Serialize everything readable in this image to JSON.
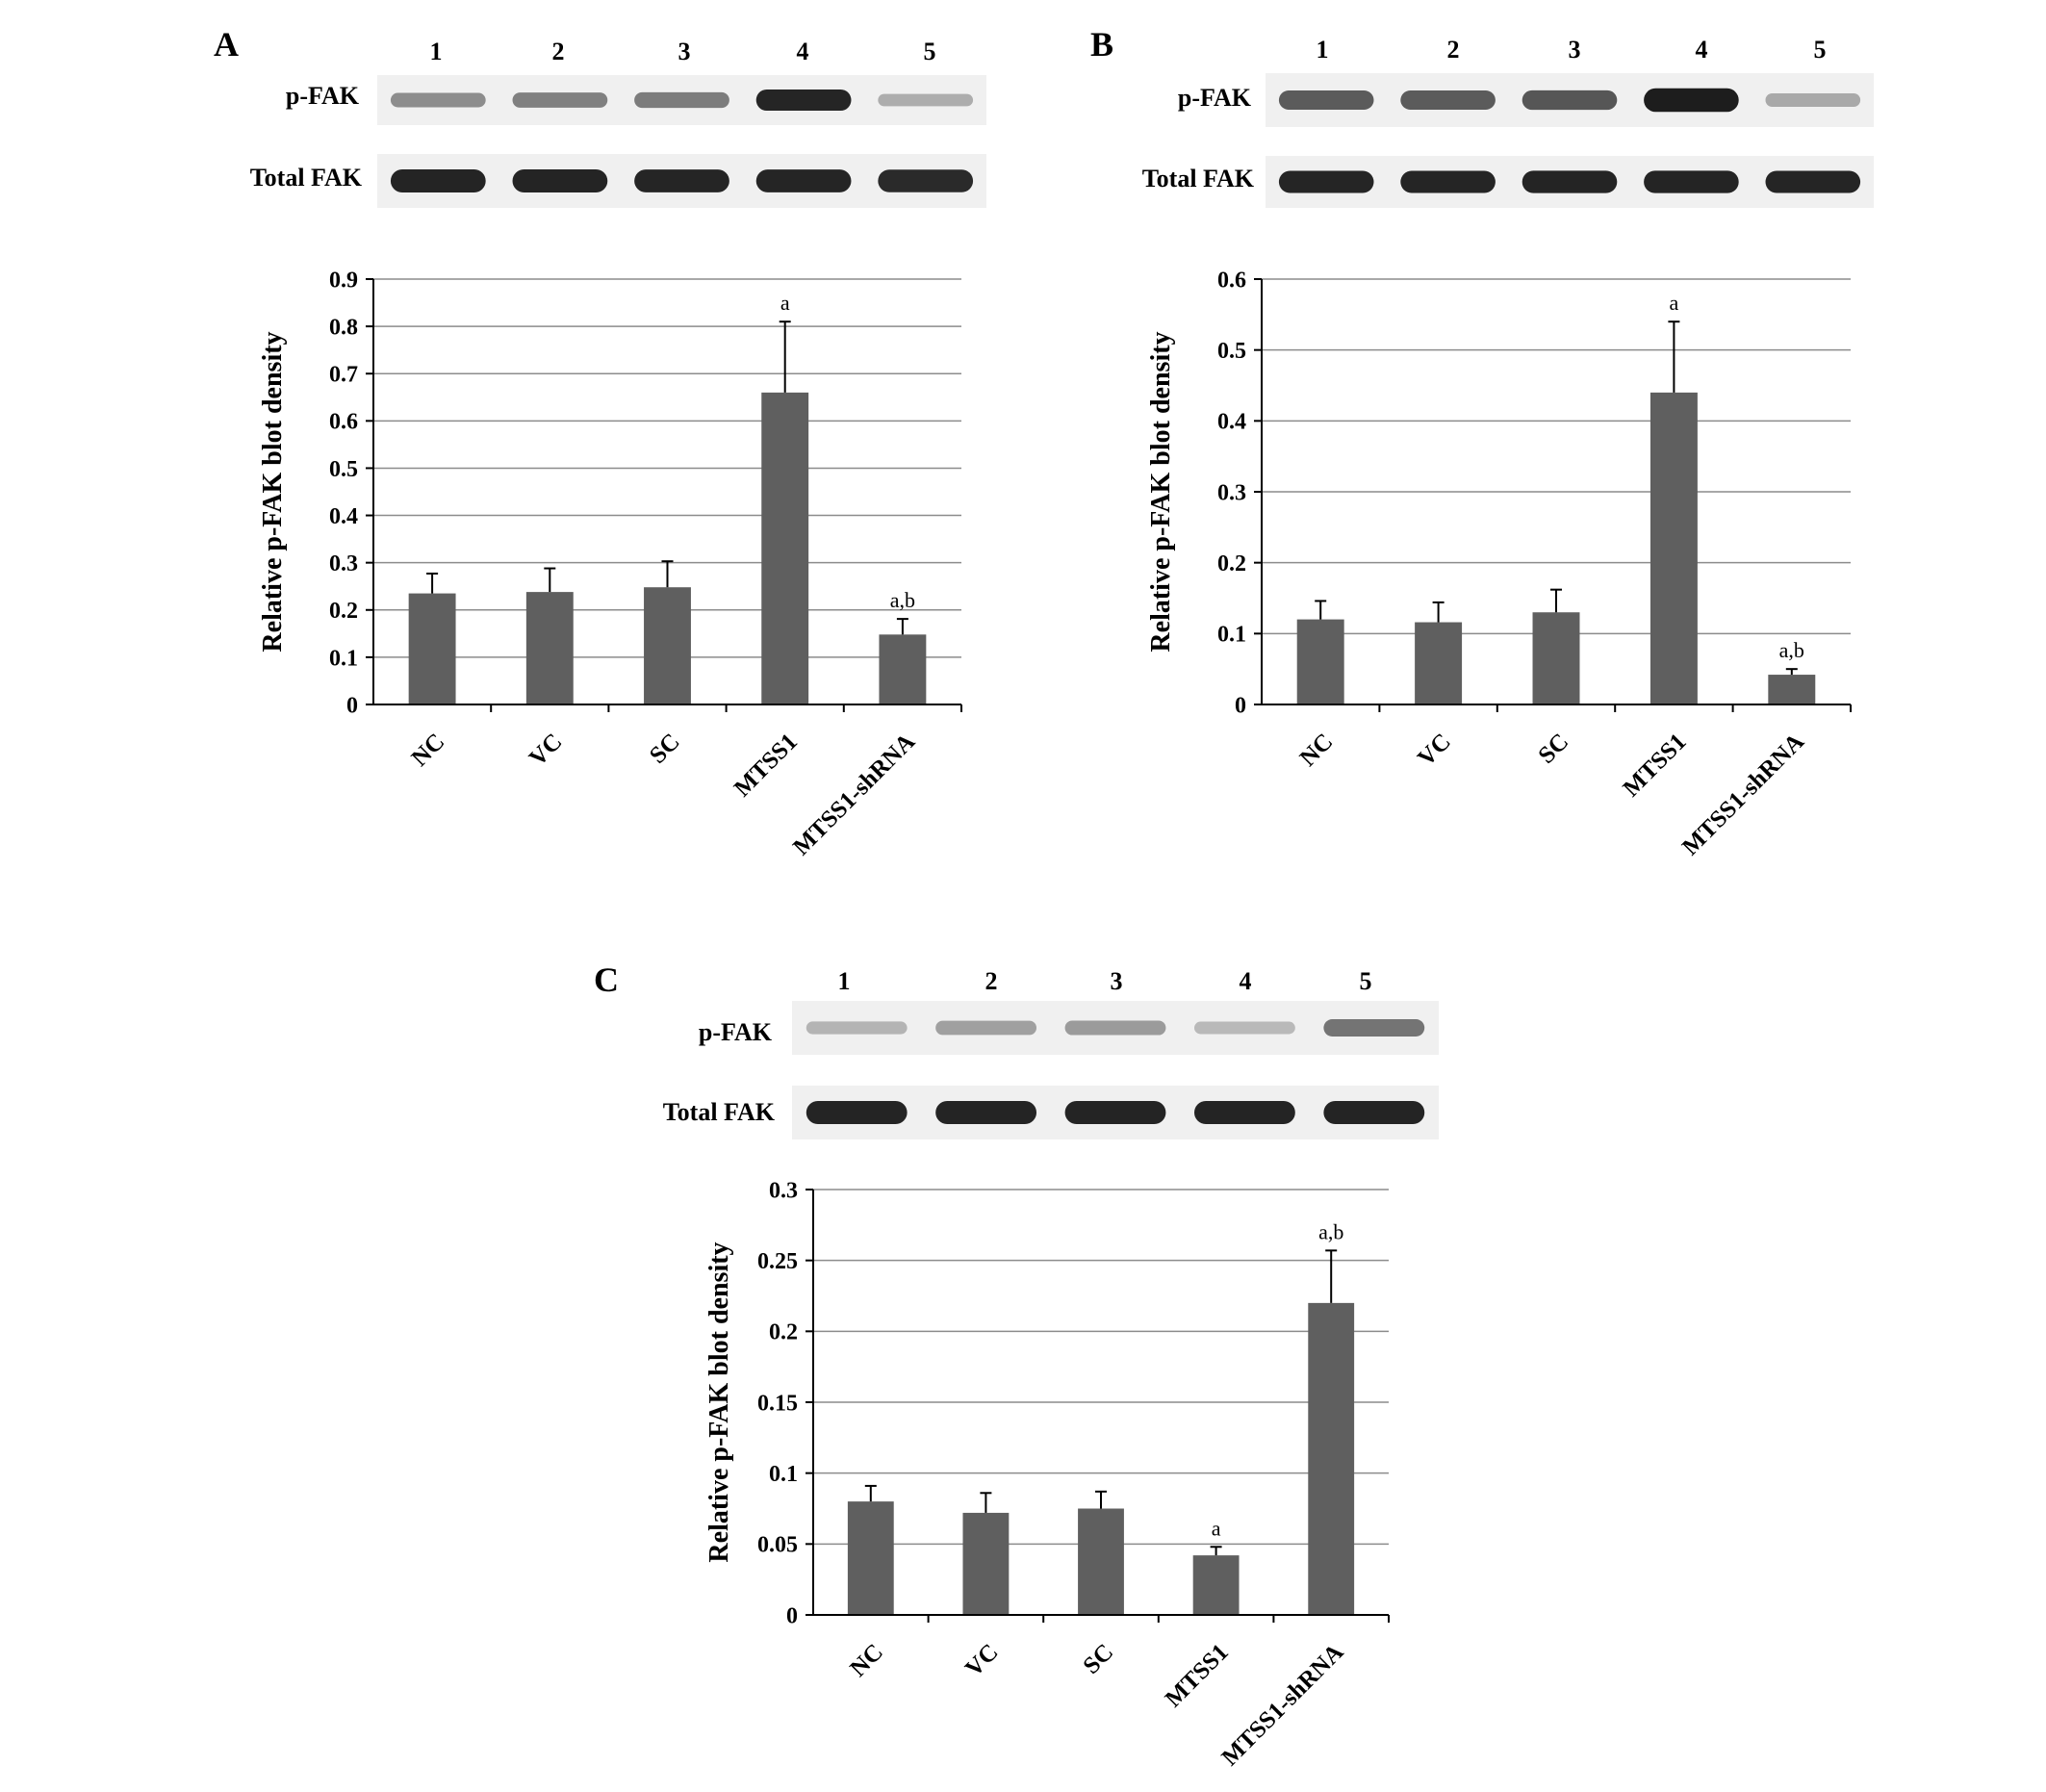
{
  "chart_data": [
    {
      "panel": "A",
      "type": "bar",
      "lanes": [
        "1",
        "2",
        "3",
        "4",
        "5"
      ],
      "blot_labels": [
        "p-FAK",
        "Total FAK"
      ],
      "blot": {
        "p-FAK": [
          0.35,
          0.42,
          0.45,
          0.9,
          0.18
        ],
        "Total FAK": [
          0.92,
          0.92,
          0.9,
          0.9,
          0.88
        ]
      },
      "categories": [
        "NC",
        "VC",
        "SC",
        "MTSS1",
        "MTSS1-shRNA"
      ],
      "values": [
        0.235,
        0.238,
        0.248,
        0.66,
        0.148
      ],
      "errors": [
        0.042,
        0.05,
        0.055,
        0.15,
        0.033
      ],
      "annotations": [
        "",
        "",
        "",
        "a",
        "a,b"
      ],
      "ylabel": "Relative p-FAK blot density",
      "ylim": [
        0,
        0.9
      ],
      "yticks": [
        0,
        0.1,
        0.2,
        0.3,
        0.4,
        0.5,
        0.6,
        0.7,
        0.8,
        0.9
      ],
      "ytick_labels": [
        "0",
        "0.1",
        "0.2",
        "0.3",
        "0.4",
        "0.5",
        "0.6",
        "0.7",
        "0.8",
        "0.9"
      ],
      "grid": true
    },
    {
      "panel": "B",
      "type": "bar",
      "lanes": [
        "1",
        "2",
        "3",
        "4",
        "5"
      ],
      "blot_labels": [
        "p-FAK",
        "Total FAK"
      ],
      "blot": {
        "p-FAK": [
          0.62,
          0.62,
          0.65,
          0.95,
          0.2
        ],
        "Total FAK": [
          0.9,
          0.9,
          0.92,
          0.92,
          0.9
        ]
      },
      "categories": [
        "NC",
        "VC",
        "SC",
        "MTSS1",
        "MTSS1-shRNA"
      ],
      "values": [
        0.12,
        0.116,
        0.13,
        0.44,
        0.042
      ],
      "errors": [
        0.026,
        0.028,
        0.032,
        0.1,
        0.008
      ],
      "annotations": [
        "",
        "",
        "",
        "a",
        "a,b"
      ],
      "ylabel": "Relative p-FAK blot density",
      "ylim": [
        0,
        0.6
      ],
      "yticks": [
        0,
        0.1,
        0.2,
        0.3,
        0.4,
        0.5,
        0.6
      ],
      "ytick_labels": [
        "0",
        "0.1",
        "0.2",
        "0.3",
        "0.4",
        "0.5",
        "0.6"
      ],
      "grid": true
    },
    {
      "panel": "C",
      "type": "bar",
      "lanes": [
        "1",
        "2",
        "3",
        "4",
        "5"
      ],
      "blot_labels": [
        "p-FAK",
        "Total FAK"
      ],
      "blot": {
        "p-FAK": [
          0.14,
          0.25,
          0.28,
          0.12,
          0.48
        ],
        "Total FAK": [
          0.92,
          0.92,
          0.92,
          0.92,
          0.92
        ]
      },
      "categories": [
        "NC",
        "VC",
        "SC",
        "MTSS1",
        "MTSS1-shRNA"
      ],
      "values": [
        0.08,
        0.072,
        0.075,
        0.042,
        0.22
      ],
      "errors": [
        0.011,
        0.014,
        0.012,
        0.006,
        0.037
      ],
      "annotations": [
        "",
        "",
        "",
        "a",
        "a,b"
      ],
      "ylabel": "Relative p-FAK blot density",
      "ylim": [
        0,
        0.3
      ],
      "yticks": [
        0,
        0.05,
        0.1,
        0.15,
        0.2,
        0.25,
        0.3
      ],
      "ytick_labels": [
        "0",
        "0.05",
        "0.1",
        "0.15",
        "0.2",
        "0.25",
        "0.3"
      ],
      "grid": true
    }
  ],
  "colors": {
    "bar": "#5f5f5f",
    "axis": "#000000",
    "grid": "#8c8c8c",
    "blot_bg": "#f0f0f0",
    "blot_band": "#141414"
  }
}
